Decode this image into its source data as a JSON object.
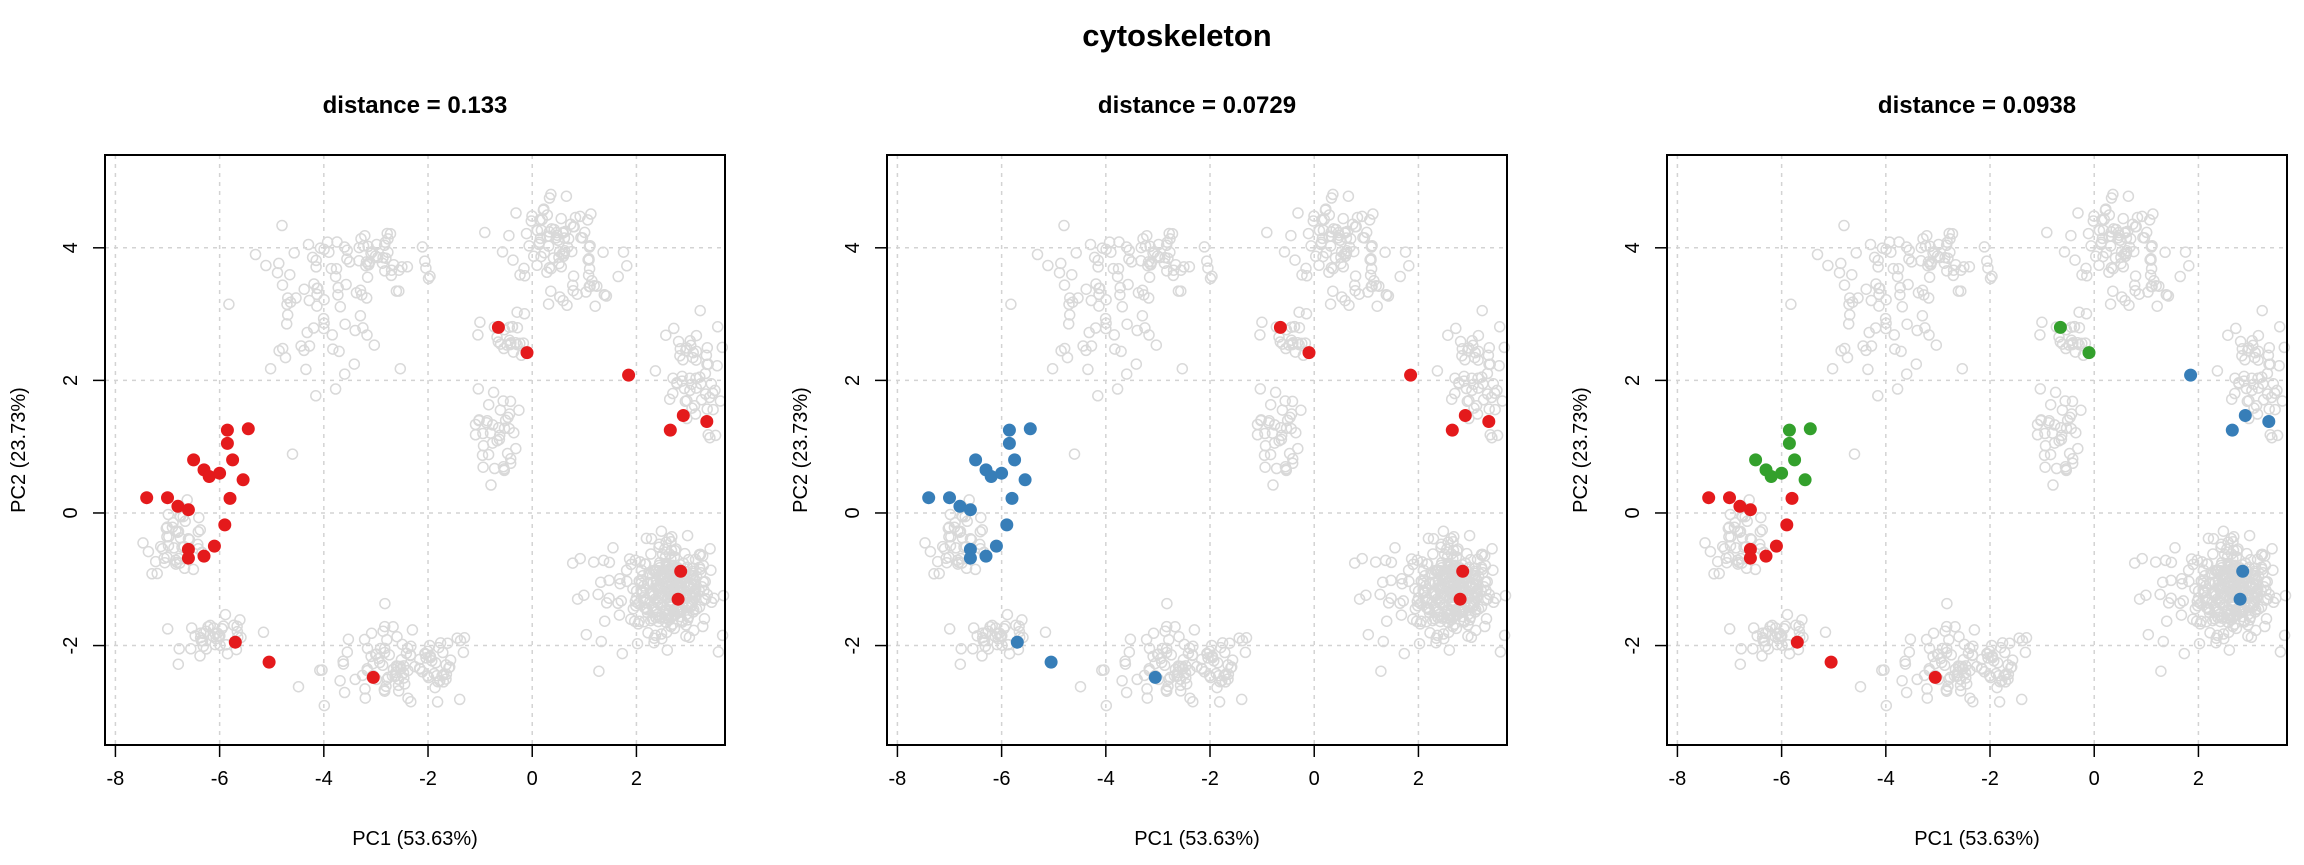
{
  "figure": {
    "title": "cytoskeleton"
  },
  "colors": {
    "background_points": "#d9d9d9",
    "red": "#e41a1c",
    "blue": "#377eb8",
    "green": "#33a02c"
  },
  "chart_data": [
    {
      "type": "scatter",
      "title": "distance =  0.133",
      "xlabel": "PC1 (53.63%)",
      "ylabel": "PC2 (23.73%)",
      "xlim": [
        -8.2,
        3.7
      ],
      "ylim": [
        -3.5,
        5.4
      ],
      "xticks": [
        -8,
        -6,
        -4,
        -2,
        0,
        2
      ],
      "yticks": [
        -2,
        0,
        2,
        4
      ],
      "grid": true,
      "series": [
        {
          "color": "#e41a1c",
          "points": [
            [
              -7.4,
              0.23
            ],
            [
              -7.0,
              0.23
            ],
            [
              -6.8,
              0.1
            ],
            [
              -6.6,
              0.05
            ],
            [
              -6.5,
              0.8
            ],
            [
              -6.3,
              0.65
            ],
            [
              -6.2,
              0.55
            ],
            [
              -6.0,
              0.6
            ],
            [
              -5.85,
              1.25
            ],
            [
              -5.85,
              1.05
            ],
            [
              -5.75,
              0.8
            ],
            [
              -5.45,
              1.27
            ],
            [
              -5.55,
              0.5
            ],
            [
              -5.8,
              0.22
            ],
            [
              -5.9,
              -0.18
            ],
            [
              -6.1,
              -0.5
            ],
            [
              -6.3,
              -0.65
            ],
            [
              -6.6,
              -0.55
            ],
            [
              -6.6,
              -0.68
            ],
            [
              -5.7,
              -1.95
            ],
            [
              -5.05,
              -2.25
            ],
            [
              -3.05,
              -2.48
            ],
            [
              -0.65,
              2.8
            ],
            [
              -0.1,
              2.42
            ],
            [
              1.85,
              2.08
            ],
            [
              2.9,
              1.47
            ],
            [
              2.65,
              1.25
            ],
            [
              3.35,
              1.38
            ],
            [
              2.85,
              -0.88
            ],
            [
              2.8,
              -1.3
            ]
          ]
        }
      ]
    },
    {
      "type": "scatter",
      "title": "distance =  0.0729",
      "xlabel": "PC1 (53.63%)",
      "ylabel": "PC2 (23.73%)",
      "xlim": [
        -8.2,
        3.7
      ],
      "ylim": [
        -3.5,
        5.4
      ],
      "xticks": [
        -8,
        -6,
        -4,
        -2,
        0,
        2
      ],
      "yticks": [
        -2,
        0,
        2,
        4
      ],
      "grid": true,
      "series": [
        {
          "color": "#377eb8",
          "points": [
            [
              -7.4,
              0.23
            ],
            [
              -7.0,
              0.23
            ],
            [
              -6.8,
              0.1
            ],
            [
              -6.6,
              0.05
            ],
            [
              -6.5,
              0.8
            ],
            [
              -6.3,
              0.65
            ],
            [
              -6.2,
              0.55
            ],
            [
              -6.0,
              0.6
            ],
            [
              -5.85,
              1.25
            ],
            [
              -5.85,
              1.05
            ],
            [
              -5.75,
              0.8
            ],
            [
              -5.45,
              1.27
            ],
            [
              -5.55,
              0.5
            ],
            [
              -5.8,
              0.22
            ],
            [
              -5.9,
              -0.18
            ],
            [
              -6.1,
              -0.5
            ],
            [
              -6.3,
              -0.65
            ],
            [
              -6.6,
              -0.55
            ],
            [
              -6.6,
              -0.68
            ],
            [
              -5.7,
              -1.95
            ],
            [
              -5.05,
              -2.25
            ],
            [
              -3.05,
              -2.48
            ]
          ]
        },
        {
          "color": "#e41a1c",
          "points": [
            [
              -0.65,
              2.8
            ],
            [
              -0.1,
              2.42
            ],
            [
              1.85,
              2.08
            ],
            [
              2.9,
              1.47
            ],
            [
              2.65,
              1.25
            ],
            [
              3.35,
              1.38
            ],
            [
              2.85,
              -0.88
            ],
            [
              2.8,
              -1.3
            ]
          ]
        }
      ]
    },
    {
      "type": "scatter",
      "title": "distance =  0.0938",
      "xlabel": "PC1 (53.63%)",
      "ylabel": "PC2 (23.73%)",
      "xlim": [
        -8.2,
        3.7
      ],
      "ylim": [
        -3.5,
        5.4
      ],
      "xticks": [
        -8,
        -6,
        -4,
        -2,
        0,
        2
      ],
      "yticks": [
        -2,
        0,
        2,
        4
      ],
      "grid": true,
      "series": [
        {
          "color": "#e41a1c",
          "points": [
            [
              -7.4,
              0.23
            ],
            [
              -7.0,
              0.23
            ],
            [
              -6.8,
              0.1
            ],
            [
              -6.6,
              0.05
            ],
            [
              -5.8,
              0.22
            ],
            [
              -5.9,
              -0.18
            ],
            [
              -6.1,
              -0.5
            ],
            [
              -6.3,
              -0.65
            ],
            [
              -6.6,
              -0.55
            ],
            [
              -6.6,
              -0.68
            ],
            [
              -5.7,
              -1.95
            ],
            [
              -5.05,
              -2.25
            ],
            [
              -3.05,
              -2.48
            ]
          ]
        },
        {
          "color": "#33a02c",
          "points": [
            [
              -6.5,
              0.8
            ],
            [
              -6.3,
              0.65
            ],
            [
              -6.2,
              0.55
            ],
            [
              -6.0,
              0.6
            ],
            [
              -5.85,
              1.25
            ],
            [
              -5.85,
              1.05
            ],
            [
              -5.75,
              0.8
            ],
            [
              -5.45,
              1.27
            ],
            [
              -5.55,
              0.5
            ],
            [
              -0.65,
              2.8
            ],
            [
              -0.1,
              2.42
            ]
          ]
        },
        {
          "color": "#377eb8",
          "points": [
            [
              1.85,
              2.08
            ],
            [
              2.9,
              1.47
            ],
            [
              2.65,
              1.25
            ],
            [
              3.35,
              1.38
            ],
            [
              2.85,
              -0.88
            ],
            [
              2.8,
              -1.3
            ]
          ]
        }
      ]
    }
  ]
}
